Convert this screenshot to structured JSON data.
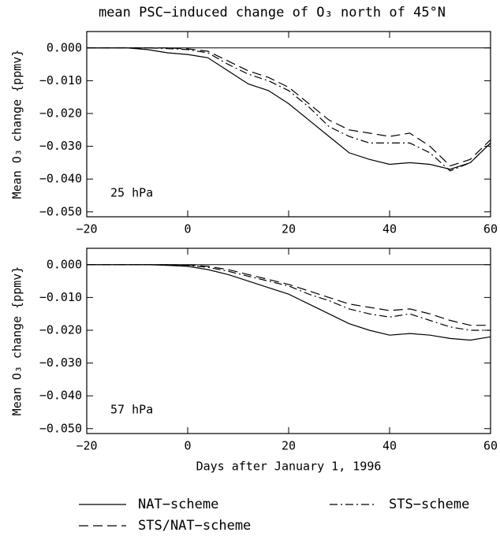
{
  "chart_data": [
    {
      "type": "line",
      "title": "mean PSC−induced change of O₃ north of 45°N",
      "ylabel": "Mean O₃ change {ppmv}",
      "annotation": "25 hPa",
      "zero_line": true,
      "legend": "bottom",
      "x": [
        -20,
        -16,
        -12,
        -8,
        -4,
        0,
        4,
        8,
        12,
        16,
        20,
        24,
        28,
        32,
        36,
        40,
        44,
        48,
        52,
        56,
        60
      ],
      "xlim": [
        -20,
        60
      ],
      "xticks": [
        {
          "value": -20,
          "label": "−20"
        },
        0,
        20,
        40,
        60
      ],
      "ylim": [
        -0.0515,
        0.005
      ],
      "yticks": [
        {
          "value": -0.05,
          "label": "−0.050"
        },
        {
          "value": -0.04,
          "label": "−0.040"
        },
        {
          "value": -0.03,
          "label": "−0.030"
        },
        {
          "value": -0.02,
          "label": "−0.020"
        },
        {
          "value": -0.01,
          "label": "−0.010"
        },
        {
          "value": 0,
          "label": "0.000"
        }
      ],
      "series": [
        {
          "name": "NAT−scheme",
          "color": "#000000",
          "dash": "solid",
          "values": [
            0,
            0,
            0,
            -0.0005,
            -0.0015,
            -0.002,
            -0.003,
            -0.007,
            -0.011,
            -0.013,
            -0.017,
            -0.022,
            -0.027,
            -0.032,
            -0.034,
            -0.0355,
            -0.035,
            -0.0355,
            -0.037,
            -0.035,
            -0.029
          ]
        },
        {
          "name": "STS/NAT−scheme",
          "color": "#000000",
          "dash": "dashed",
          "values": [
            0,
            0,
            0,
            0,
            0,
            -0.0003,
            -0.001,
            -0.004,
            -0.007,
            -0.009,
            -0.012,
            -0.017,
            -0.022,
            -0.025,
            -0.026,
            -0.027,
            -0.026,
            -0.03,
            -0.036,
            -0.034,
            -0.028
          ]
        },
        {
          "name": "STS−scheme",
          "color": "#000000",
          "dash": "dashdot",
          "values": [
            0,
            0,
            0,
            0,
            -0.0002,
            -0.0005,
            -0.0015,
            -0.005,
            -0.008,
            -0.01,
            -0.013,
            -0.018,
            -0.024,
            -0.027,
            -0.029,
            -0.029,
            -0.029,
            -0.032,
            -0.0375,
            -0.035,
            -0.029
          ]
        }
      ]
    },
    {
      "type": "line",
      "ylabel": "Mean O₃ change {ppmv}",
      "xlabel": "Days after January 1, 1996",
      "annotation": "57 hPa",
      "zero_line": true,
      "x": [
        -20,
        -16,
        -12,
        -8,
        -4,
        0,
        4,
        8,
        12,
        16,
        20,
        24,
        28,
        32,
        36,
        40,
        44,
        48,
        52,
        56,
        60
      ],
      "xlim": [
        -20,
        60
      ],
      "xticks": [
        {
          "value": -20,
          "label": "−20"
        },
        0,
        20,
        40,
        60
      ],
      "ylim": [
        -0.0515,
        0.005
      ],
      "yticks": [
        {
          "value": -0.05,
          "label": "−0.050"
        },
        {
          "value": -0.04,
          "label": "−0.040"
        },
        {
          "value": -0.03,
          "label": "−0.030"
        },
        {
          "value": -0.02,
          "label": "−0.020"
        },
        {
          "value": -0.01,
          "label": "−0.010"
        },
        {
          "value": 0,
          "label": "0.000"
        }
      ],
      "series": [
        {
          "color": "#000000",
          "dash": "solid",
          "values": [
            0,
            0,
            0,
            0,
            -0.0002,
            -0.0005,
            -0.0015,
            -0.003,
            -0.005,
            -0.007,
            -0.009,
            -0.012,
            -0.015,
            -0.018,
            -0.02,
            -0.0215,
            -0.021,
            -0.0215,
            -0.0225,
            -0.023,
            -0.022
          ]
        },
        {
          "color": "#000000",
          "dash": "dashed",
          "values": [
            0,
            0,
            0,
            0,
            0,
            -0.0001,
            -0.0005,
            -0.0015,
            -0.003,
            -0.0045,
            -0.006,
            -0.008,
            -0.01,
            -0.012,
            -0.013,
            -0.014,
            -0.0135,
            -0.015,
            -0.017,
            -0.0185,
            -0.0185
          ]
        },
        {
          "color": "#000000",
          "dash": "dashdot",
          "values": [
            0,
            0,
            0,
            0,
            0,
            -0.0002,
            -0.0008,
            -0.002,
            -0.0035,
            -0.005,
            -0.0065,
            -0.009,
            -0.011,
            -0.0135,
            -0.015,
            -0.016,
            -0.015,
            -0.017,
            -0.019,
            -0.02,
            -0.02
          ]
        }
      ]
    }
  ]
}
